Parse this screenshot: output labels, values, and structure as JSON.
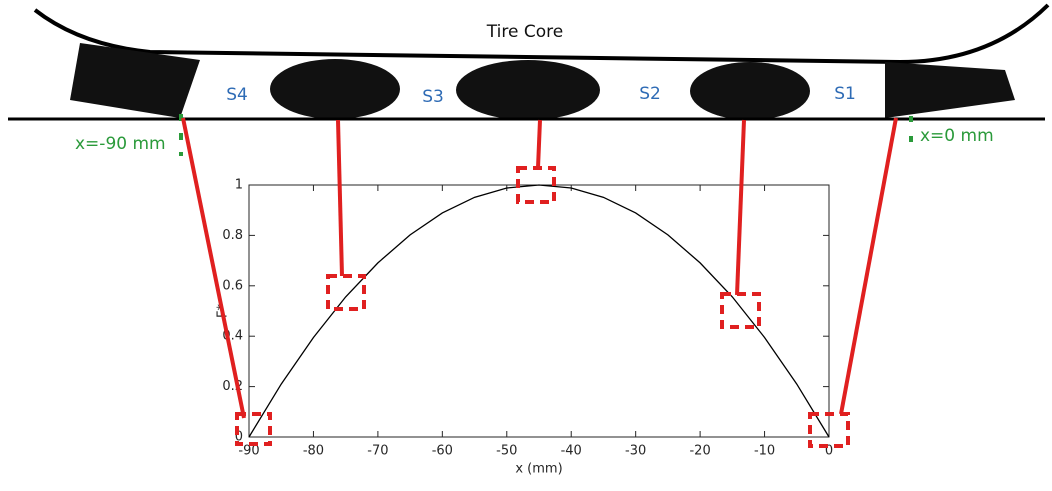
{
  "diagram": {
    "title": "Tire Core",
    "segments": [
      "S4",
      "S3",
      "S2",
      "S1"
    ],
    "markers": [
      "x=-90 mm",
      "x=0 mm"
    ]
  },
  "chart_data": {
    "type": "line",
    "x": [
      -90,
      -85,
      -80,
      -75,
      -70,
      -65,
      -60,
      -55,
      -50,
      -45,
      -40,
      -35,
      -30,
      -25,
      -20,
      -15,
      -10,
      -5,
      0
    ],
    "values": [
      0,
      0.21,
      0.395,
      0.556,
      0.691,
      0.802,
      0.889,
      0.951,
      0.988,
      1,
      0.988,
      0.951,
      0.889,
      0.802,
      0.691,
      0.556,
      0.395,
      0.21,
      0
    ],
    "color": "#000000",
    "xlabel": "x (mm)",
    "ylabel": "F*",
    "xlim": [
      -90,
      0
    ],
    "ylim": [
      0,
      1
    ],
    "xticks": [
      -90,
      -80,
      -70,
      -60,
      -50,
      -40,
      -30,
      -20,
      -10,
      0
    ],
    "yticks": [
      0,
      0.2,
      0.4,
      0.6,
      0.8,
      1
    ]
  }
}
